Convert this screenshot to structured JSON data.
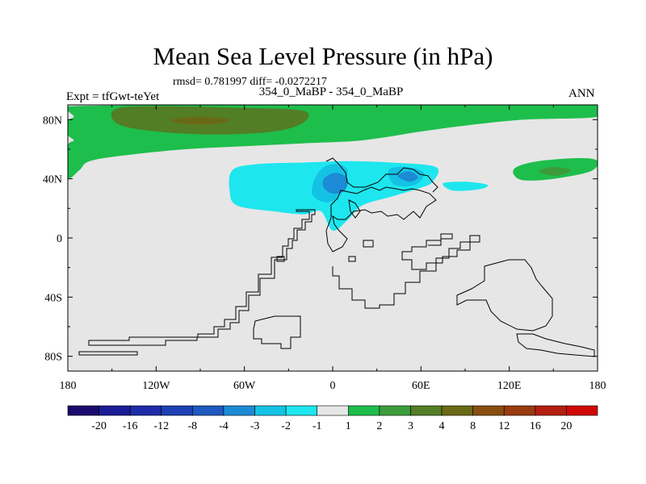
{
  "header": {
    "title": "Mean Sea Level Pressure (in hPa)",
    "stats": "rmsd= 0.781997 diff= -0.0272217",
    "subtitle": "354_0_MaBP - 354_0_MaBP",
    "expt": "Expt = tfGwt-teYet",
    "season": "ANN"
  },
  "chart_data": {
    "type": "heatmap",
    "title": "Mean Sea Level Pressure (in hPa)",
    "xlabel": "",
    "ylabel": "",
    "xlim": [
      -180,
      180
    ],
    "ylim": [
      -90,
      90
    ],
    "x_ticks": [
      {
        "value": -180,
        "label": "180"
      },
      {
        "value": -120,
        "label": "120W"
      },
      {
        "value": -60,
        "label": "60W"
      },
      {
        "value": 0,
        "label": "0"
      },
      {
        "value": 60,
        "label": "60E"
      },
      {
        "value": 120,
        "label": "120E"
      },
      {
        "value": 180,
        "label": "180"
      }
    ],
    "y_ticks": [
      {
        "value": 80,
        "label": "80N"
      },
      {
        "value": 40,
        "label": "40N"
      },
      {
        "value": 0,
        "label": "0"
      },
      {
        "value": -40,
        "label": "40S"
      },
      {
        "value": -80,
        "label": "80S"
      }
    ],
    "colorbar": {
      "labels": [
        "-20",
        "-16",
        "-12",
        "-8",
        "-4",
        "-3",
        "-2",
        "-1",
        "1",
        "2",
        "3",
        "4",
        "8",
        "12",
        "16",
        "20"
      ],
      "colors": [
        "#1a0a6e",
        "#1c1c96",
        "#1e2ca8",
        "#1e40b4",
        "#1e58c0",
        "#1c8ad4",
        "#14c2e4",
        "#1ee6ee",
        "#e6e6e6",
        "#1ebe4c",
        "#3c9c3c",
        "#527e26",
        "#6a6a16",
        "#884e10",
        "#9a3a10",
        "#b21e10",
        "#d00808"
      ]
    },
    "regions": [
      {
        "name": "arctic-positive",
        "level": "1 to 2",
        "color": "#1ebe4c",
        "points": [
          [
            -180,
            89
          ],
          [
            -90,
            90
          ],
          [
            0,
            90
          ],
          [
            80,
            90
          ],
          [
            180,
            90
          ],
          [
            180,
            82
          ],
          [
            130,
            80
          ],
          [
            90,
            76
          ],
          [
            60,
            72
          ],
          [
            20,
            66
          ],
          [
            -20,
            64
          ],
          [
            -60,
            62
          ],
          [
            -100,
            60
          ],
          [
            -140,
            56
          ],
          [
            -165,
            52
          ],
          [
            -172,
            46
          ],
          [
            -180,
            41
          ],
          [
            -180,
            62
          ],
          [
            -176,
            66
          ],
          [
            -180,
            70
          ],
          [
            -180,
            79
          ],
          [
            -176,
            82
          ],
          [
            -180,
            86
          ]
        ]
      },
      {
        "name": "arctic-core-3",
        "level": "3 to 4",
        "color": "#527e26",
        "points": [
          [
            -148,
            87
          ],
          [
            -120,
            89
          ],
          [
            -60,
            88
          ],
          [
            -20,
            86
          ],
          [
            -20,
            78
          ],
          [
            -40,
            72
          ],
          [
            -80,
            70
          ],
          [
            -120,
            72
          ],
          [
            -146,
            77
          ]
        ]
      },
      {
        "name": "arctic-core-4",
        "level": "4 to 8",
        "color": "#6a6a16",
        "points": [
          [
            -110,
            80
          ],
          [
            -90,
            82
          ],
          [
            -70,
            80
          ],
          [
            -80,
            77
          ],
          [
            -100,
            77
          ]
        ]
      },
      {
        "name": "east-asia-positive",
        "level": "1 to 2",
        "color": "#1ebe4c",
        "points": [
          [
            125,
            48
          ],
          [
            140,
            52
          ],
          [
            168,
            54
          ],
          [
            180,
            52
          ],
          [
            175,
            45
          ],
          [
            150,
            40
          ],
          [
            130,
            39
          ],
          [
            123,
            43
          ]
        ]
      },
      {
        "name": "east-asia-core",
        "level": "2 to 3",
        "color": "#3c9c3c",
        "points": [
          [
            140,
            45
          ],
          [
            150,
            48
          ],
          [
            162,
            46
          ],
          [
            152,
            42
          ]
        ]
      },
      {
        "name": "eurasia-negative",
        "level": "-2 to -1",
        "color": "#1ee6ee",
        "points": [
          [
            -68,
            46
          ],
          [
            -50,
            50
          ],
          [
            -20,
            51
          ],
          [
            10,
            52
          ],
          [
            40,
            51
          ],
          [
            70,
            48
          ],
          [
            68,
            38
          ],
          [
            60,
            34
          ],
          [
            40,
            28
          ],
          [
            20,
            22
          ],
          [
            10,
            12
          ],
          [
            0,
            5
          ],
          [
            -8,
            18
          ],
          [
            -20,
            16
          ],
          [
            -40,
            18
          ],
          [
            -65,
            22
          ],
          [
            -70,
            32
          ]
        ]
      },
      {
        "name": "korea-negative",
        "level": "-2 to -1",
        "color": "#1ee6ee",
        "points": [
          [
            75,
            37
          ],
          [
            90,
            38
          ],
          [
            105,
            36
          ],
          [
            100,
            33
          ],
          [
            82,
            32
          ]
        ]
      },
      {
        "name": "eurasia-core-1",
        "level": "-3 to -2",
        "color": "#14c2e4",
        "points": [
          [
            -10,
            44
          ],
          [
            0,
            50
          ],
          [
            10,
            46
          ],
          [
            6,
            30
          ],
          [
            -4,
            24
          ],
          [
            -14,
            30
          ]
        ]
      },
      {
        "name": "eurasia-core-2",
        "level": "-3 to -2",
        "color": "#14c2e4",
        "points": [
          [
            38,
            46
          ],
          [
            50,
            48
          ],
          [
            62,
            44
          ],
          [
            56,
            36
          ],
          [
            42,
            36
          ]
        ]
      },
      {
        "name": "eurasia-core-3",
        "level": "-4 to -3",
        "color": "#1c8ad4",
        "points": [
          [
            -6,
            40
          ],
          [
            2,
            44
          ],
          [
            10,
            40
          ],
          [
            8,
            32
          ],
          [
            0,
            30
          ],
          [
            -6,
            34
          ]
        ]
      },
      {
        "name": "eurasia-core-4",
        "level": "-4 to -3",
        "color": "#1c8ad4",
        "points": [
          [
            44,
            42
          ],
          [
            52,
            45
          ],
          [
            58,
            41
          ],
          [
            52,
            38
          ]
        ]
      }
    ]
  }
}
